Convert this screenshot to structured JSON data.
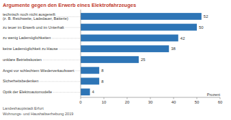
{
  "chart_data": {
    "type": "bar",
    "orientation": "horizontal",
    "title": "Argumente gegen den Erwerb eines Elektrofahrzeuges",
    "categories": [
      "technisch noch nicht ausgereift (z. B. Reichweite, Ladedauer, Batterie)",
      "zu teuer im Erwerb und im Unterhalt",
      "zu wenig Lademöglichkeiten",
      "keine Lademöglichkeit zu Hause",
      "unklare Betriebskosten",
      "Angst vor schlechtem Wiederverkaufswert",
      "Sicherheitsbedenken",
      "Optik der Elektroautomodelle"
    ],
    "values": [
      52,
      50,
      42,
      38,
      25,
      8,
      8,
      4
    ],
    "color": "#2e75b6",
    "xlim": [
      0,
      60
    ],
    "xticks": [
      0,
      10,
      20,
      30,
      40,
      50,
      60
    ],
    "xlabel": "Prozent",
    "data_labels": true,
    "grid": false,
    "source": [
      "Landeshauptstadt Erfurt",
      "Wohnungs- und Haushaltserhebung 2019"
    ]
  }
}
